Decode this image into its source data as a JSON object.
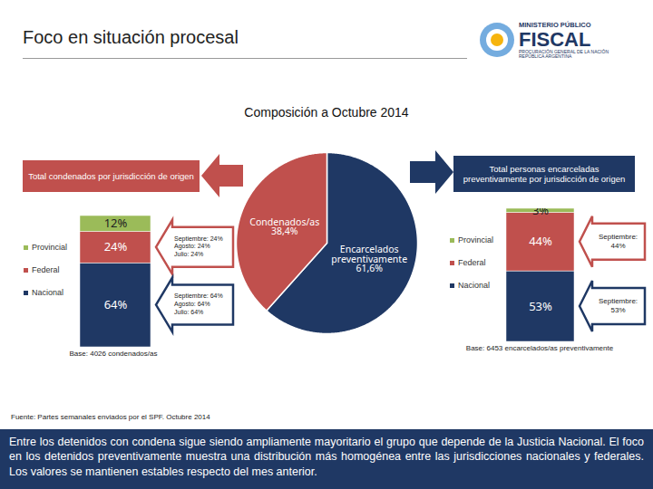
{
  "header": {
    "title": "Foco en situación procesal",
    "logo": [
      "MINISTERIO PÚBLICO",
      "FISCAL",
      "PROCURACIÓN GENERAL DE LA NACIÓN",
      "REPÚBLICA ARGENTINA"
    ]
  },
  "chart_data": [
    {
      "type": "pie",
      "title": "Composición a Octubre 2014",
      "categories": [
        "Encarcelados preventivamente",
        "Condenados/as"
      ],
      "values": [
        61.6,
        38.4
      ],
      "value_labels": [
        "61,6%",
        "38,4%"
      ],
      "colors": [
        "#1f3864",
        "#c0504d"
      ],
      "data_labels": true
    },
    {
      "type": "bar",
      "stacked": true,
      "title": "Total condenados por jurisdicción de origen",
      "categories": [
        null
      ],
      "series": [
        {
          "name": "Nacional",
          "color": "#1f3864",
          "values": [
            64
          ],
          "value_labels": [
            "64%"
          ]
        },
        {
          "name": "Federal",
          "color": "#c0504d",
          "values": [
            24
          ],
          "value_labels": [
            "24%"
          ]
        },
        {
          "name": "Provincial",
          "color": "#9bbb59",
          "values": [
            12
          ],
          "value_labels": [
            "12%"
          ]
        }
      ],
      "ylim": [
        0,
        100
      ],
      "tick_labels": false,
      "data_labels": true,
      "legend": "left",
      "caption": "Base: 4026 condenados/as",
      "annotations": [
        {
          "series": "Federal",
          "text": [
            "Septiembre: 24%",
            "Agosto: 24%",
            "Julio: 24%"
          ]
        },
        {
          "series": "Nacional",
          "text": [
            "Septiembre: 64%",
            "Agosto: 64%",
            "Julio: 64%"
          ]
        }
      ]
    },
    {
      "type": "bar",
      "stacked": true,
      "title": "Total personas encarceladas preventivamente por jurisdicción de origen",
      "categories": [
        null
      ],
      "series": [
        {
          "name": "Nacional",
          "color": "#1f3864",
          "values": [
            53
          ],
          "value_labels": [
            "53%"
          ]
        },
        {
          "name": "Federal",
          "color": "#c0504d",
          "values": [
            44
          ],
          "value_labels": [
            "44%"
          ]
        },
        {
          "name": "Provincial",
          "color": "#9bbb59",
          "values": [
            3
          ],
          "value_labels": [
            "3%"
          ]
        }
      ],
      "ylim": [
        0,
        100
      ],
      "tick_labels": false,
      "data_labels": true,
      "legend": "left",
      "caption": "Base: 6453 encarcelados/as preventivamente",
      "annotations": [
        {
          "series": "Federal",
          "text": [
            "Septiembre: 44%"
          ]
        },
        {
          "series": "Nacional",
          "text": [
            "Septiembre: 53%"
          ]
        }
      ]
    }
  ],
  "source": "Fuente: Partes semanales enviados por el SPF. Octubre 2014",
  "footer": "Entre los detenidos con condena sigue siendo ampliamente mayoritario el grupo que depende de la Justicia Nacional. El foco en los detenidos preventivamente muestra una distribución más homogénea entre las jurisdicciones nacionales y federales. Los valores se mantienen estables respecto del mes anterior."
}
